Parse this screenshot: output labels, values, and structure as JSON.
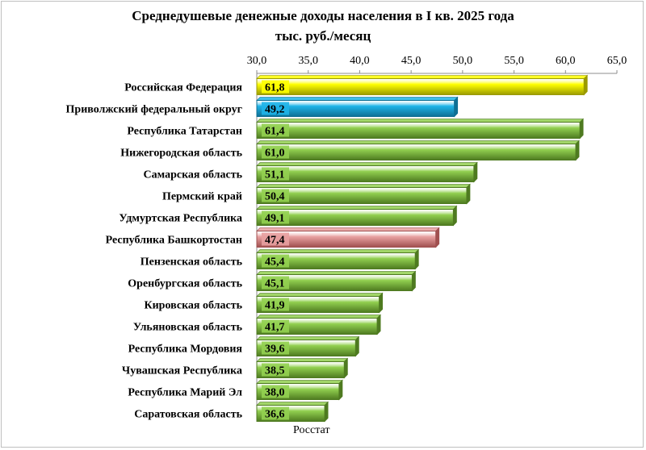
{
  "chart_data": {
    "type": "bar",
    "orientation": "horizontal",
    "title": "Среднедушевые денежные доходы населения в I кв. 2025 года",
    "subtitle": "тыс. руб./месяц",
    "source": "Росстат",
    "xlim": [
      30.0,
      65.0
    ],
    "ticks": [
      "30,0",
      "35,0",
      "40,0",
      "45,0",
      "50,0",
      "55,0",
      "60,0",
      "65,0"
    ],
    "tick_values": [
      30,
      35,
      40,
      45,
      50,
      55,
      60,
      65
    ],
    "axis_position": "top",
    "grid": false,
    "categories": [
      "Российская Федерация",
      "Приволжский федеральный округ",
      "Республика Татарстан",
      "Нижегородская область",
      "Самарская область",
      "Пермский край",
      "Удмуртская Республика",
      "Республика Башкортостан",
      "Пензенская область",
      "Оренбургская область",
      "Кировская область",
      "Ульяновская область",
      "Республика Мордовия",
      "Чувашская Республика",
      "Республика Марий Эл",
      "Саратовская область"
    ],
    "values": [
      61.8,
      49.2,
      61.4,
      61.0,
      51.1,
      50.4,
      49.1,
      47.4,
      45.4,
      45.1,
      41.9,
      41.7,
      39.6,
      38.5,
      38.0,
      36.6
    ],
    "labels": [
      "61,8",
      "49,2",
      "61,4",
      "61,0",
      "51,1",
      "50,4",
      "49,1",
      "47,4",
      "45,4",
      "45,1",
      "41,9",
      "41,7",
      "39,6",
      "38,5",
      "38,0",
      "36,6"
    ],
    "colors": [
      "#ffff00",
      "#1fb4e8",
      "#92d050",
      "#92d050",
      "#92d050",
      "#92d050",
      "#92d050",
      "#e8a0a0",
      "#92d050",
      "#92d050",
      "#92d050",
      "#92d050",
      "#92d050",
      "#92d050",
      "#92d050",
      "#92d050"
    ],
    "edge_colors": [
      "#9a9a00",
      "#0e6f94",
      "#4e7a20",
      "#4e7a20",
      "#4e7a20",
      "#4e7a20",
      "#4e7a20",
      "#a05050",
      "#4e7a20",
      "#4e7a20",
      "#4e7a20",
      "#4e7a20",
      "#4e7a20",
      "#4e7a20",
      "#4e7a20",
      "#4e7a20"
    ]
  }
}
